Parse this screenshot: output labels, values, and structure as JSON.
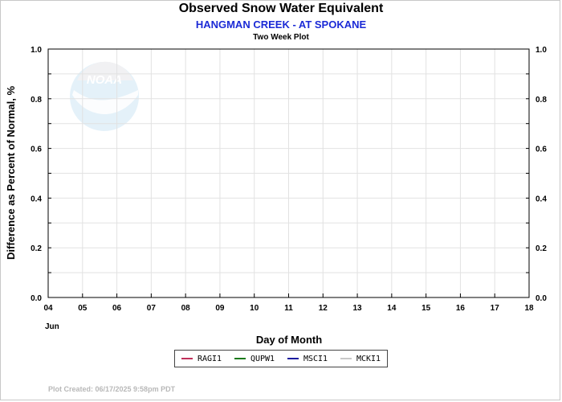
{
  "chart_data": {
    "type": "line",
    "title": "Observed Snow Water Equivalent",
    "subtitle": "HANGMAN CREEK - AT SPOKANE",
    "subsubtitle": "Two Week Plot",
    "xlabel": "Day of Month",
    "ylabel": "Difference as Percent of Normal, %",
    "month_label": "Jun",
    "x_ticks": [
      "04",
      "05",
      "06",
      "07",
      "08",
      "09",
      "10",
      "11",
      "12",
      "13",
      "14",
      "15",
      "16",
      "17",
      "18"
    ],
    "y_ticks": [
      "0.0",
      "0.2",
      "0.4",
      "0.6",
      "0.8",
      "1.0"
    ],
    "xlim": [
      4,
      18
    ],
    "ylim": [
      0,
      1
    ],
    "grid": true,
    "legend_placement": "bottom-center",
    "series": [
      {
        "name": "RAGI1",
        "color": "#c0305a",
        "x": [],
        "y": []
      },
      {
        "name": "QUPW1",
        "color": "#1a7a1a",
        "x": [],
        "y": []
      },
      {
        "name": "MSCI1",
        "color": "#1b1b9e",
        "x": [],
        "y": []
      },
      {
        "name": "MCKI1",
        "color": "#c8c8c8",
        "x": [],
        "y": []
      }
    ]
  },
  "footer": "Plot Created: 06/17/2025 9:58pm PDT",
  "watermark_text": "NOAA"
}
